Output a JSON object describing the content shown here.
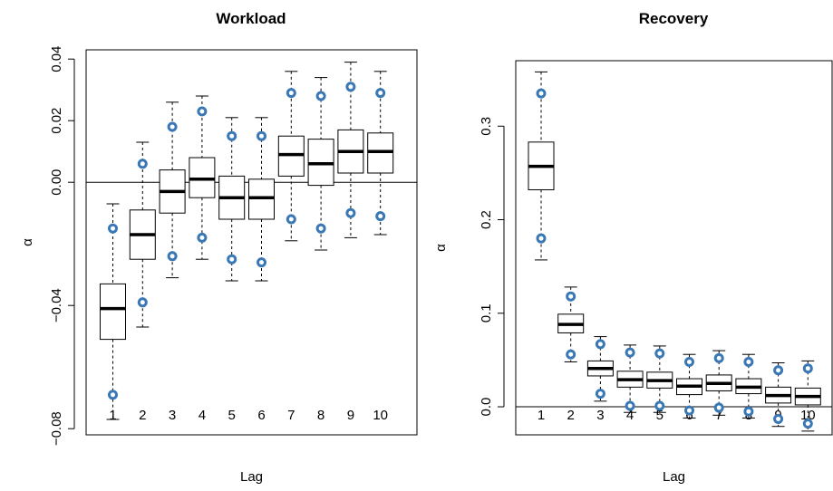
{
  "colors": {
    "ci_point": "#3a78b5",
    "box_fill": "#ffffff",
    "line": "#000000"
  },
  "chart_data": [
    {
      "type": "boxplot",
      "title": "Workload",
      "xlabel": "Lag",
      "ylabel": "α",
      "categories": [
        "1",
        "2",
        "3",
        "4",
        "5",
        "6",
        "7",
        "8",
        "9",
        "10"
      ],
      "ylim": [
        -0.082,
        0.043
      ],
      "yticks": [
        -0.08,
        -0.04,
        0.0,
        0.02,
        0.04
      ],
      "ytick_labels": [
        "−0.08",
        "−0.04",
        "0.00",
        "0.02",
        "0.04"
      ],
      "reference_line": 0,
      "boxes": [
        {
          "whisker_low": -0.077,
          "q1": -0.051,
          "median": -0.041,
          "q3": -0.033,
          "whisker_high": -0.007,
          "ci_low": -0.069,
          "ci_high": -0.015
        },
        {
          "whisker_low": -0.047,
          "q1": -0.025,
          "median": -0.017,
          "q3": -0.009,
          "whisker_high": 0.013,
          "ci_low": -0.039,
          "ci_high": 0.006
        },
        {
          "whisker_low": -0.031,
          "q1": -0.01,
          "median": -0.003,
          "q3": 0.004,
          "whisker_high": 0.026,
          "ci_low": -0.024,
          "ci_high": 0.018
        },
        {
          "whisker_low": -0.025,
          "q1": -0.005,
          "median": 0.001,
          "q3": 0.008,
          "whisker_high": 0.028,
          "ci_low": -0.018,
          "ci_high": 0.023
        },
        {
          "whisker_low": -0.032,
          "q1": -0.012,
          "median": -0.005,
          "q3": 0.002,
          "whisker_high": 0.021,
          "ci_low": -0.025,
          "ci_high": 0.015
        },
        {
          "whisker_low": -0.032,
          "q1": -0.012,
          "median": -0.005,
          "q3": 0.001,
          "whisker_high": 0.021,
          "ci_low": -0.026,
          "ci_high": 0.015
        },
        {
          "whisker_low": -0.019,
          "q1": 0.002,
          "median": 0.009,
          "q3": 0.015,
          "whisker_high": 0.036,
          "ci_low": -0.012,
          "ci_high": 0.029
        },
        {
          "whisker_low": -0.022,
          "q1": -0.001,
          "median": 0.006,
          "q3": 0.014,
          "whisker_high": 0.034,
          "ci_low": -0.015,
          "ci_high": 0.028
        },
        {
          "whisker_low": -0.018,
          "q1": 0.003,
          "median": 0.01,
          "q3": 0.017,
          "whisker_high": 0.039,
          "ci_low": -0.01,
          "ci_high": 0.031
        },
        {
          "whisker_low": -0.017,
          "q1": 0.003,
          "median": 0.01,
          "q3": 0.016,
          "whisker_high": 0.036,
          "ci_low": -0.011,
          "ci_high": 0.029
        }
      ]
    },
    {
      "type": "boxplot",
      "title": "Recovery",
      "xlabel": "Lag",
      "ylabel": "α",
      "categories": [
        "1",
        "2",
        "3",
        "4",
        "5",
        "6",
        "7",
        "8",
        "9",
        "10"
      ],
      "ylim": [
        -0.03,
        0.37
      ],
      "yticks": [
        0.0,
        0.1,
        0.2,
        0.3
      ],
      "ytick_labels": [
        "0.0",
        "0.1",
        "0.2",
        "0.3"
      ],
      "reference_line": 0,
      "boxes": [
        {
          "whisker_low": 0.157,
          "q1": 0.232,
          "median": 0.257,
          "q3": 0.283,
          "whisker_high": 0.358,
          "ci_low": 0.18,
          "ci_high": 0.335
        },
        {
          "whisker_low": 0.048,
          "q1": 0.079,
          "median": 0.088,
          "q3": 0.099,
          "whisker_high": 0.128,
          "ci_low": 0.056,
          "ci_high": 0.118
        },
        {
          "whisker_low": 0.006,
          "q1": 0.033,
          "median": 0.041,
          "q3": 0.049,
          "whisker_high": 0.075,
          "ci_low": 0.014,
          "ci_high": 0.067
        },
        {
          "whisker_low": -0.006,
          "q1": 0.021,
          "median": 0.029,
          "q3": 0.038,
          "whisker_high": 0.066,
          "ci_low": 0.001,
          "ci_high": 0.058
        },
        {
          "whisker_low": -0.006,
          "q1": 0.02,
          "median": 0.028,
          "q3": 0.037,
          "whisker_high": 0.065,
          "ci_low": 0.001,
          "ci_high": 0.057
        },
        {
          "whisker_low": -0.012,
          "q1": 0.013,
          "median": 0.022,
          "q3": 0.03,
          "whisker_high": 0.056,
          "ci_low": -0.004,
          "ci_high": 0.048
        },
        {
          "whisker_low": -0.009,
          "q1": 0.017,
          "median": 0.025,
          "q3": 0.034,
          "whisker_high": 0.06,
          "ci_low": -0.001,
          "ci_high": 0.052
        },
        {
          "whisker_low": -0.012,
          "q1": 0.014,
          "median": 0.021,
          "q3": 0.03,
          "whisker_high": 0.056,
          "ci_low": -0.005,
          "ci_high": 0.048
        },
        {
          "whisker_low": -0.021,
          "q1": 0.004,
          "median": 0.012,
          "q3": 0.021,
          "whisker_high": 0.047,
          "ci_low": -0.013,
          "ci_high": 0.039
        },
        {
          "whisker_low": -0.026,
          "q1": 0.002,
          "median": 0.011,
          "q3": 0.02,
          "whisker_high": 0.049,
          "ci_low": -0.018,
          "ci_high": 0.041
        }
      ]
    }
  ]
}
